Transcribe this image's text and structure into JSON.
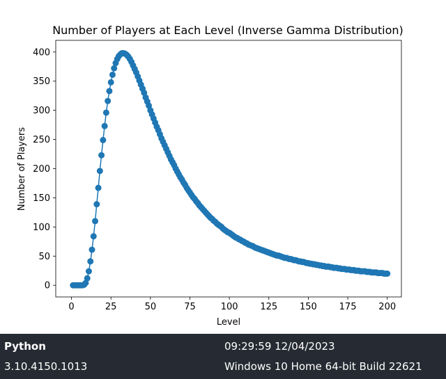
{
  "chart_data": {
    "type": "line",
    "title": "Number of Players at Each Level (Inverse Gamma Distribution)",
    "xlabel": "Level",
    "ylabel": "Number of Players",
    "xlim": [
      -9.95,
      208.95
    ],
    "ylim": [
      -20,
      420
    ],
    "xticks": [
      0,
      25,
      50,
      75,
      100,
      125,
      150,
      175,
      200
    ],
    "yticks": [
      0,
      50,
      100,
      150,
      200,
      250,
      300,
      350,
      400
    ],
    "grid": false,
    "markers": true,
    "color": "#1f77b4",
    "series": [
      {
        "x": [
          1,
          2,
          3,
          4,
          5,
          6,
          7,
          8,
          9,
          10,
          11,
          12,
          13,
          14,
          15,
          16,
          17,
          18,
          19,
          20,
          21,
          22,
          23,
          24,
          25,
          26,
          27,
          28,
          29,
          30,
          31,
          32,
          33,
          34,
          35,
          36,
          37,
          38,
          39,
          40,
          41,
          42,
          43,
          44,
          45,
          46,
          47,
          48,
          49,
          50,
          51,
          52,
          53,
          54,
          55,
          56,
          57,
          58,
          59,
          60,
          61,
          62,
          63,
          64,
          65,
          66,
          67,
          68,
          69,
          70,
          71,
          72,
          73,
          74,
          75,
          76,
          77,
          78,
          79,
          80,
          81,
          82,
          83,
          84,
          85,
          86,
          87,
          88,
          89,
          90,
          91,
          92,
          93,
          94,
          95,
          96,
          97,
          98,
          99,
          100,
          101,
          102,
          103,
          104,
          105,
          106,
          107,
          108,
          109,
          110,
          111,
          112,
          113,
          114,
          115,
          116,
          117,
          118,
          119,
          120,
          121,
          122,
          123,
          124,
          125,
          126,
          127,
          128,
          129,
          130,
          131,
          132,
          133,
          134,
          135,
          136,
          137,
          138,
          139,
          140,
          141,
          142,
          143,
          144,
          145,
          146,
          147,
          148,
          149,
          150,
          151,
          152,
          153,
          154,
          155,
          156,
          157,
          158,
          159,
          160,
          161,
          162,
          163,
          164,
          165,
          166,
          167,
          168,
          169,
          170,
          171,
          172,
          173,
          174,
          175,
          176,
          177,
          178,
          179,
          180,
          181,
          182,
          183,
          184,
          185,
          186,
          187,
          188,
          189,
          190,
          191,
          192,
          193,
          194,
          195,
          196,
          197,
          198,
          199,
          200
        ],
        "values": [
          0,
          0,
          0,
          0,
          0,
          0,
          0,
          1,
          4,
          12,
          24,
          41,
          61,
          84,
          110,
          139,
          167,
          196,
          223,
          249,
          273,
          296,
          316,
          333,
          348,
          361,
          372,
          381,
          388,
          393,
          396,
          398,
          398,
          397,
          395,
          392,
          388,
          383,
          377,
          371,
          365,
          358,
          351,
          344,
          337,
          330,
          322,
          315,
          308,
          300,
          293,
          286,
          279,
          272,
          266,
          259,
          252,
          246,
          240,
          234,
          228,
          222,
          216,
          211,
          206,
          200,
          195,
          190,
          185,
          181,
          176,
          172,
          167,
          163,
          159,
          155,
          151,
          148,
          144,
          141,
          137,
          134,
          131,
          128,
          125,
          122,
          119,
          116,
          114,
          111,
          109,
          106,
          104,
          102,
          100,
          97,
          95,
          93,
          91,
          90,
          88,
          86,
          84,
          82,
          81,
          79,
          78,
          76,
          75,
          73,
          72,
          70,
          69,
          68,
          67,
          65,
          64,
          63,
          62,
          61,
          60,
          59,
          58,
          57,
          56,
          55,
          54,
          53,
          52,
          51,
          51,
          50,
          49,
          48,
          47,
          47,
          46,
          45,
          45,
          44,
          43,
          43,
          42,
          41,
          41,
          40,
          40,
          39,
          38,
          38,
          37,
          37,
          36,
          36,
          35,
          35,
          34,
          34,
          33,
          33,
          32,
          32,
          32,
          31,
          31,
          30,
          30,
          30,
          29,
          29,
          28,
          28,
          28,
          27,
          27,
          27,
          26,
          26,
          26,
          25,
          25,
          25,
          24,
          24,
          24,
          24,
          23,
          23,
          23,
          22,
          22,
          22,
          22,
          21,
          21,
          21,
          21,
          20,
          20,
          20
        ]
      }
    ]
  },
  "footer": {
    "app_name": "Python",
    "version": "3.10.4150.1013",
    "datetime": "09:29:59 12/04/2023",
    "os": "Windows 10 Home 64-bit Build 22621"
  }
}
